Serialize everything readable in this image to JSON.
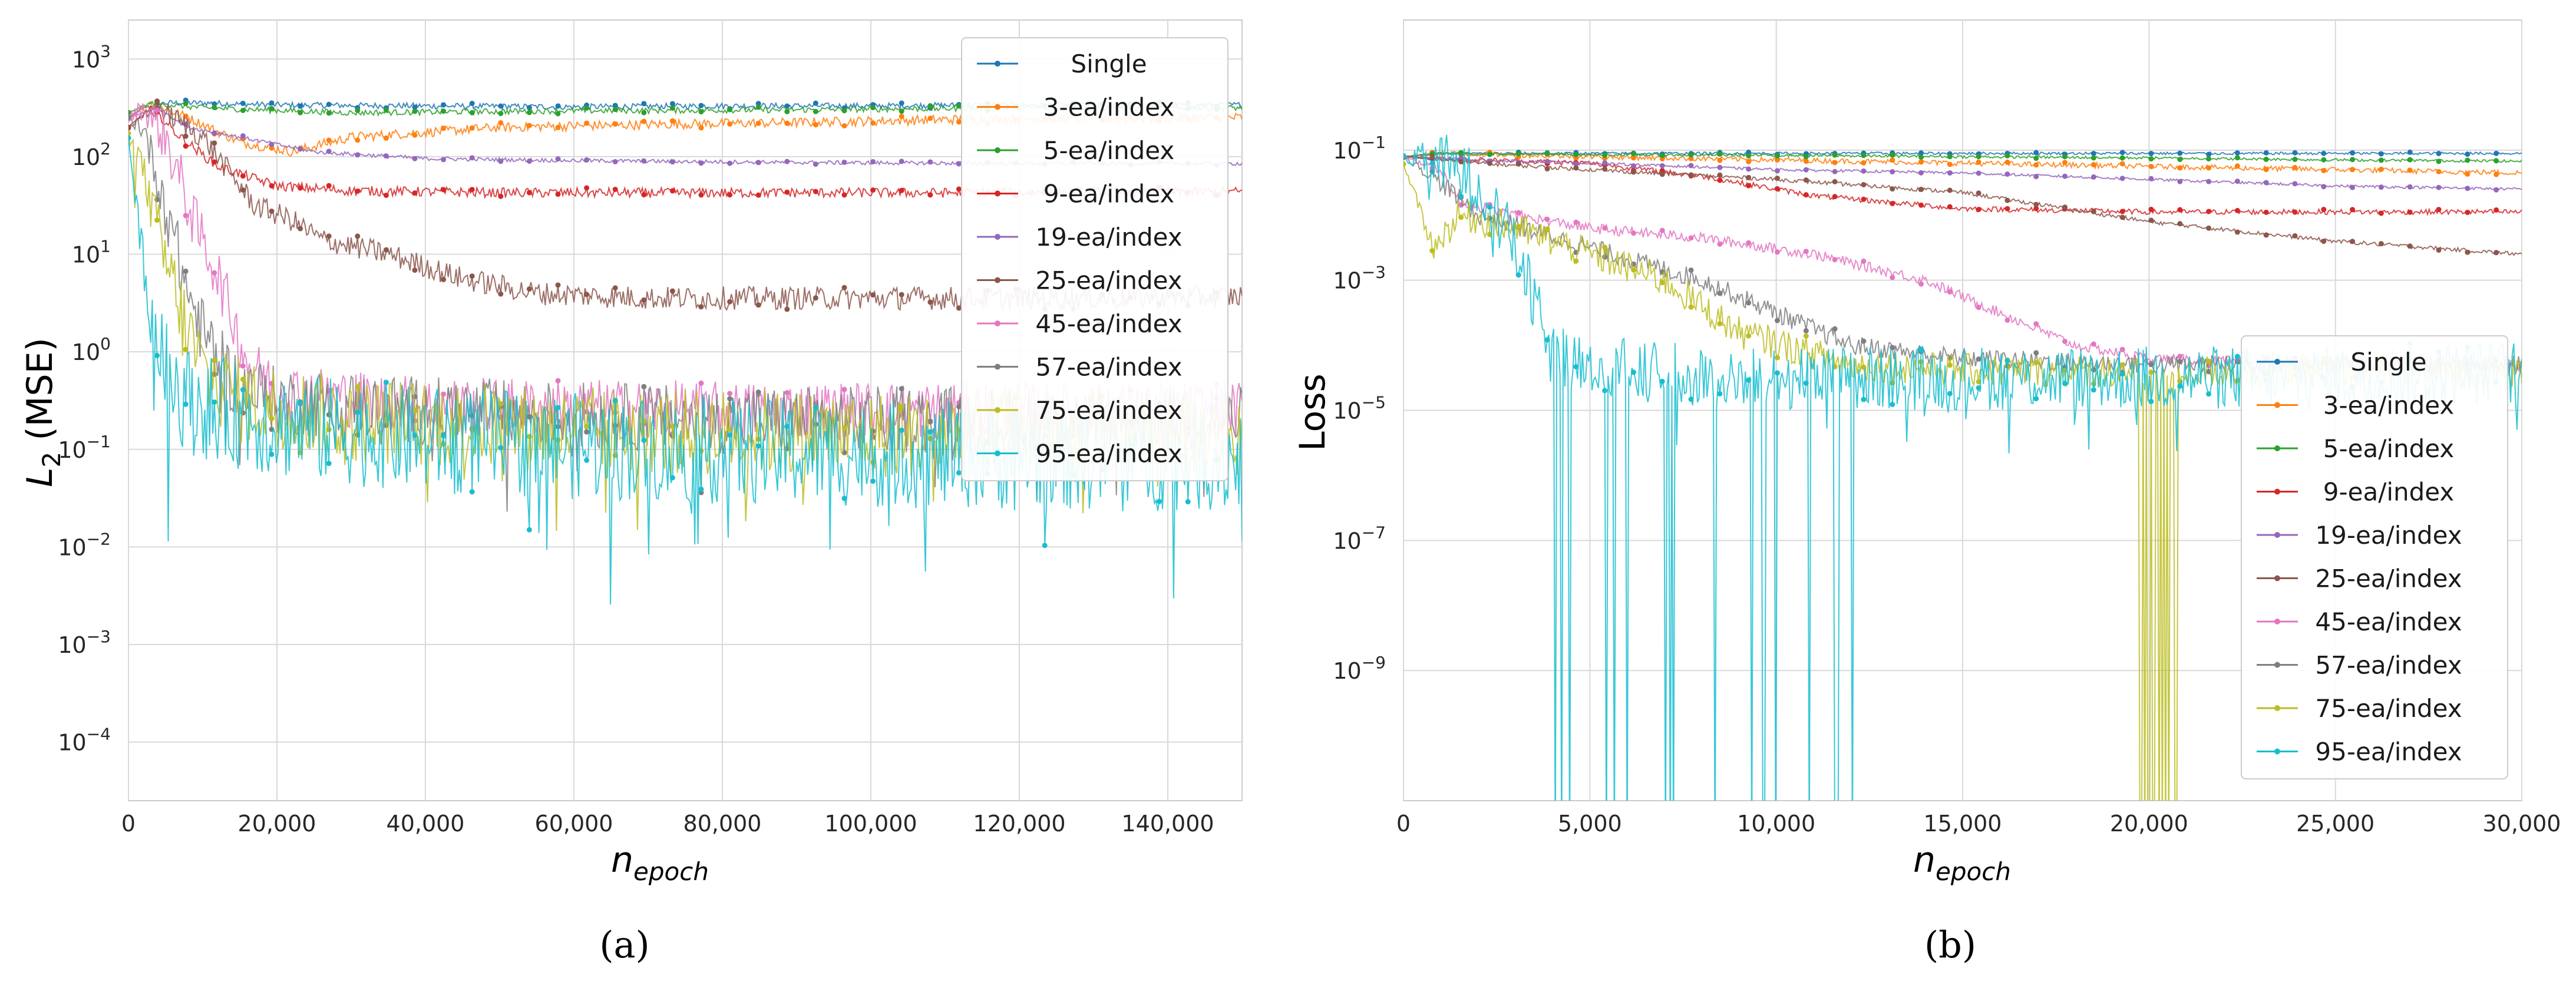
{
  "captions": [
    "(a)",
    "(b)"
  ],
  "series_colors": {
    "Single": "#1f77b4",
    "3-ea/index": "#ff7f0e",
    "5-ea/index": "#2ca02c",
    "9-ea/index": "#d62728",
    "19-ea/index": "#9467bd",
    "25-ea/index": "#8c564b",
    "45-ea/index": "#e377c2",
    "57-ea/index": "#7f7f7f",
    "75-ea/index": "#bcbd22",
    "95-ea/index": "#17becf"
  },
  "chart_data": [
    {
      "type": "line",
      "caption": "(a)",
      "xlabel": "n",
      "xlabel_sub": "epoch",
      "ylabel": "L",
      "ylabel_sub": "2",
      "ylabel_suffix": " (MSE)",
      "yscale": "log",
      "xlim": [
        0,
        150000
      ],
      "ylim_exp": [
        -4.6,
        3.4
      ],
      "xticks": [
        0,
        20000,
        40000,
        60000,
        80000,
        100000,
        120000,
        140000
      ],
      "xtick_labels": [
        "0",
        "20,000",
        "40,000",
        "60,000",
        "80,000",
        "100,000",
        "120,000",
        "140,000"
      ],
      "yticks_exp": [
        -4,
        -3,
        -2,
        -1,
        0,
        1,
        2,
        3
      ],
      "ytick_labels": [
        "10",
        "10",
        "10",
        "10",
        "10",
        "10",
        "10",
        "10"
      ],
      "ytick_exps": [
        "−4",
        "−3",
        "−2",
        "−1",
        "0",
        "1",
        "2",
        "3"
      ],
      "legend_position": "top-right",
      "series": [
        {
          "name": "Single",
          "x": [
            0,
            2000,
            5000,
            10000,
            20000,
            40000,
            60000,
            80000,
            100000,
            120000,
            150000
          ],
          "y_log10": [
            2.4,
            2.5,
            2.55,
            2.55,
            2.53,
            2.52,
            2.51,
            2.52,
            2.52,
            2.53,
            2.53
          ],
          "noise": 0.03
        },
        {
          "name": "3-ea/index",
          "x": [
            0,
            3000,
            8000,
            15000,
            22000,
            30000,
            50000,
            70000,
            90000,
            110000,
            150000
          ],
          "y_log10": [
            2.4,
            2.55,
            2.4,
            2.15,
            2.05,
            2.2,
            2.3,
            2.33,
            2.35,
            2.38,
            2.4
          ],
          "noise": 0.05
        },
        {
          "name": "5-ea/index",
          "x": [
            0,
            3000,
            10000,
            30000,
            60000,
            90000,
            120000,
            150000
          ],
          "y_log10": [
            2.45,
            2.55,
            2.5,
            2.45,
            2.47,
            2.48,
            2.5,
            2.5
          ],
          "noise": 0.03
        },
        {
          "name": "9-ea/index",
          "x": [
            0,
            3000,
            7000,
            12000,
            20000,
            30000,
            50000,
            80000,
            110000,
            150000
          ],
          "y_log10": [
            2.3,
            2.5,
            2.2,
            1.9,
            1.7,
            1.65,
            1.63,
            1.63,
            1.63,
            1.64
          ],
          "noise": 0.05
        },
        {
          "name": "19-ea/index",
          "x": [
            0,
            4000,
            8000,
            15000,
            25000,
            40000,
            60000,
            90000,
            120000,
            150000
          ],
          "y_log10": [
            2.4,
            2.5,
            2.3,
            2.2,
            2.05,
            1.98,
            1.96,
            1.94,
            1.93,
            1.93
          ],
          "noise": 0.02
        },
        {
          "name": "25-ea/index",
          "x": [
            0,
            4000,
            10000,
            17000,
            22000,
            26000,
            35000,
            45000,
            55000,
            70000,
            100000,
            130000,
            150000
          ],
          "y_log10": [
            2.3,
            2.5,
            2.2,
            1.5,
            1.35,
            1.15,
            1.0,
            0.75,
            0.6,
            0.55,
            0.55,
            0.55,
            0.57
          ],
          "noise": 0.12
        },
        {
          "name": "45-ea/index",
          "x": [
            0,
            2000,
            5000,
            9000,
            12000,
            16000,
            20000,
            40000,
            80000,
            150000
          ],
          "y_log10": [
            2.4,
            2.5,
            2.2,
            1.3,
            0.8,
            -0.1,
            -0.4,
            -0.55,
            -0.6,
            -0.6
          ],
          "noise": 0.3
        },
        {
          "name": "57-ea/index",
          "x": [
            0,
            2000,
            5000,
            8000,
            10000,
            14000,
            20000,
            40000,
            80000,
            150000
          ],
          "y_log10": [
            2.4,
            2.3,
            1.5,
            0.6,
            0.2,
            -0.3,
            -0.5,
            -0.6,
            -0.7,
            -0.7
          ],
          "noise": 0.35
        },
        {
          "name": "75-ea/index",
          "x": [
            0,
            1500,
            4000,
            7000,
            10000,
            15000,
            30000,
            60000,
            100000,
            150000
          ],
          "y_log10": [
            2.2,
            2.0,
            1.2,
            0.4,
            -0.2,
            -0.5,
            -0.7,
            -0.8,
            -0.85,
            -0.85
          ],
          "noise": 0.45
        },
        {
          "name": "95-ea/index",
          "x": [
            0,
            1000,
            3000,
            5000,
            8000,
            12000,
            20000,
            40000,
            70000,
            100000,
            150000
          ],
          "y_log10": [
            2.2,
            1.5,
            0.4,
            -0.2,
            -0.5,
            -0.6,
            -0.75,
            -0.9,
            -1.0,
            -1.05,
            -1.1
          ],
          "noise": 0.55
        }
      ]
    },
    {
      "type": "line",
      "caption": "(b)",
      "xlabel": "n",
      "xlabel_sub": "epoch",
      "ylabel": "Loss",
      "yscale": "log",
      "xlim": [
        0,
        30000
      ],
      "ylim_exp": [
        -11.0,
        1.0
      ],
      "xticks": [
        0,
        5000,
        10000,
        15000,
        20000,
        25000,
        30000
      ],
      "xtick_labels": [
        "0",
        "5,000",
        "10,000",
        "15,000",
        "20,000",
        "25,000",
        "30,000"
      ],
      "yticks_exp": [
        -9,
        -7,
        -5,
        -3,
        -1
      ],
      "ytick_labels": [
        "10",
        "10",
        "10",
        "10",
        "10"
      ],
      "ytick_exps": [
        "−9",
        "−7",
        "−5",
        "−3",
        "−1"
      ],
      "legend_position": "lower-right",
      "series": [
        {
          "name": "Single",
          "x": [
            0,
            1000,
            5000,
            10000,
            15000,
            20000,
            25000,
            30000
          ],
          "y_log10": [
            -1.1,
            -1.05,
            -1.05,
            -1.05,
            -1.05,
            -1.05,
            -1.05,
            -1.05
          ],
          "noise": 0.02
        },
        {
          "name": "3-ea/index",
          "x": [
            0,
            1000,
            5000,
            10000,
            15000,
            20000,
            25000,
            30000
          ],
          "y_log10": [
            -1.1,
            -1.05,
            -1.1,
            -1.15,
            -1.2,
            -1.25,
            -1.3,
            -1.35
          ],
          "noise": 0.04
        },
        {
          "name": "5-ea/index",
          "x": [
            0,
            1000,
            5000,
            10000,
            15000,
            20000,
            25000,
            30000
          ],
          "y_log10": [
            -1.1,
            -1.05,
            -1.07,
            -1.08,
            -1.1,
            -1.12,
            -1.15,
            -1.17
          ],
          "noise": 0.02
        },
        {
          "name": "9-ea/index",
          "x": [
            0,
            2000,
            5000,
            8000,
            11000,
            15000,
            20000,
            25000,
            30000
          ],
          "y_log10": [
            -1.1,
            -1.15,
            -1.2,
            -1.4,
            -1.7,
            -1.9,
            -1.95,
            -1.95,
            -1.95
          ],
          "noise": 0.04
        },
        {
          "name": "19-ea/index",
          "x": [
            0,
            2000,
            5000,
            10000,
            15000,
            20000,
            25000,
            30000
          ],
          "y_log10": [
            -1.1,
            -1.15,
            -1.2,
            -1.3,
            -1.35,
            -1.45,
            -1.55,
            -1.6
          ],
          "noise": 0.02
        },
        {
          "name": "25-ea/index",
          "x": [
            0,
            2000,
            5000,
            10000,
            15000,
            20000,
            25000,
            30000
          ],
          "y_log10": [
            -1.1,
            -1.2,
            -1.3,
            -1.45,
            -1.65,
            -2.1,
            -2.4,
            -2.6
          ],
          "noise": 0.03
        },
        {
          "name": "45-ea/index",
          "x": [
            0,
            1000,
            1500,
            3000,
            5000,
            8000,
            11000,
            14000,
            16000,
            18000,
            20000,
            25000,
            30000
          ],
          "y_log10": [
            -1.1,
            -1.3,
            -1.8,
            -2.0,
            -2.2,
            -2.35,
            -2.6,
            -3.0,
            -3.5,
            -4.0,
            -4.2,
            -4.3,
            -4.3
          ],
          "noise": 0.08
        },
        {
          "name": "57-ea/index",
          "x": [
            0,
            1000,
            2000,
            5000,
            8000,
            10000,
            12000,
            15000,
            20000,
            25000,
            30000
          ],
          "y_log10": [
            -1.1,
            -1.5,
            -2.0,
            -2.5,
            -3.0,
            -3.5,
            -4.0,
            -4.2,
            -4.3,
            -4.3,
            -4.3
          ],
          "noise": 0.15
        },
        {
          "name": "75-ea/index",
          "x": [
            0,
            800,
            1500,
            3000,
            5000,
            7000,
            9000,
            12000,
            16000,
            20000,
            25000,
            30000
          ],
          "y_log10": [
            -1.2,
            -2.5,
            -2.0,
            -2.2,
            -2.6,
            -3.0,
            -3.8,
            -4.3,
            -4.4,
            -4.4,
            -4.4,
            -4.4
          ],
          "noise": 0.25
        },
        {
          "name": "95-ea/index",
          "x": [
            0,
            1000,
            2000,
            3000,
            4000,
            6000,
            10000,
            15000,
            20000,
            25000,
            30000
          ],
          "y_log10": [
            -1.1,
            -1.2,
            -1.5,
            -2.5,
            -4.2,
            -4.4,
            -4.5,
            -4.5,
            -4.5,
            -4.5,
            -4.4
          ],
          "noise": 0.5
        }
      ]
    }
  ]
}
